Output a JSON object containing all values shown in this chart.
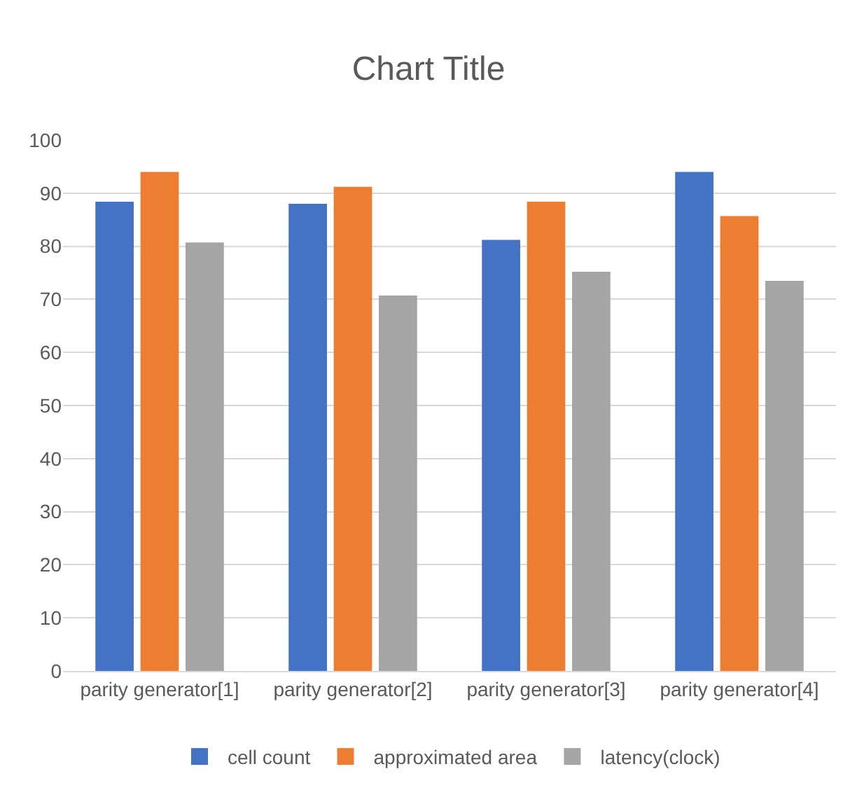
{
  "chart_data": {
    "type": "bar",
    "title": "Chart Title",
    "categories": [
      "parity generator[1]",
      "parity generator[2]",
      "parity generator[3]",
      "parity generator[4]"
    ],
    "series": [
      {
        "name": "cell count",
        "color": "#4472c4",
        "values": [
          88.4,
          88,
          81.2,
          94
        ]
      },
      {
        "name": "approximated area",
        "color": "#ed7d31",
        "values": [
          94,
          91.2,
          88.4,
          85.7
        ]
      },
      {
        "name": "latency(clock)",
        "color": "#a5a5a5",
        "values": [
          80.7,
          70.7,
          75.2,
          73.5
        ]
      }
    ],
    "ylim": [
      0,
      100
    ],
    "yticks": [
      0,
      10,
      20,
      30,
      40,
      50,
      60,
      70,
      80,
      90,
      100
    ],
    "grid": "y",
    "legend": "bottom"
  }
}
